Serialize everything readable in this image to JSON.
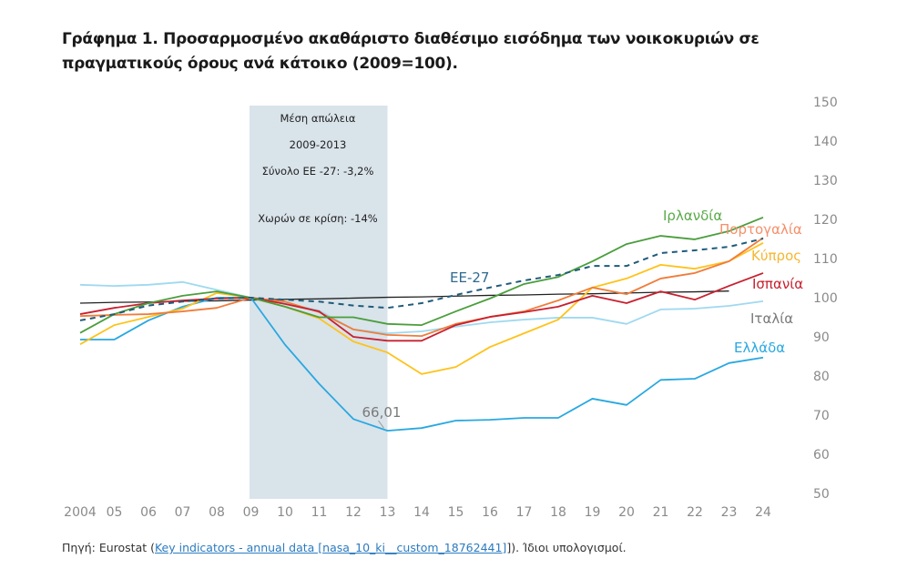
{
  "chart_data": {
    "type": "line",
    "title": "Γράφημα 1. Προσαρμοσμένο ακαθάριστο διαθέσιμο εισόδημα των νοικοκυριών σε πραγματικούς όρους ανά κάτοικο (2009=100).",
    "xlabel": "",
    "ylabel": "",
    "x": [
      "2004",
      "05",
      "06",
      "07",
      "08",
      "09",
      "10",
      "11",
      "12",
      "13",
      "14",
      "15",
      "16",
      "17",
      "18",
      "19",
      "20",
      "21",
      "22",
      "23",
      "24"
    ],
    "yticks": [
      50,
      60,
      70,
      80,
      90,
      100,
      110,
      120,
      130,
      140,
      150
    ],
    "ylim": [
      50,
      150
    ],
    "grid": false,
    "legend": "inline labels at line ends",
    "shaded_period": {
      "from": "09",
      "to": "13",
      "color": "#d9e3ea",
      "lines": [
        "Μέση απώλεια",
        "2009-2013",
        "Σύνολο ΕΕ -27:  -3,2%",
        "Χωρών σε κρίση: -14%"
      ]
    },
    "annotation": {
      "text": "66,01",
      "x": "13",
      "y": 66.01
    },
    "series": [
      {
        "name": "Ιρλανδία",
        "color": "#4a9e3c",
        "label_color": "#5aaa4a",
        "dashed": false,
        "values": [
          91,
          95.8,
          98.6,
          100.5,
          101.6,
          100,
          97.7,
          95,
          95,
          93.3,
          93,
          96.5,
          99.8,
          103.5,
          105.3,
          109.3,
          113.7,
          115.8,
          114.9,
          117,
          120.5
        ]
      },
      {
        "name": "ΕΕ-27",
        "color": "#1f5b7a",
        "label_color": "#2f6a8f",
        "dashed": true,
        "values": [
          94.2,
          95.8,
          98,
          99,
          99.8,
          100,
          99.5,
          99,
          98,
          97.4,
          98.6,
          100.7,
          102.6,
          104.4,
          105.8,
          108.1,
          108.1,
          111.4,
          112.1,
          113,
          115.1
        ]
      },
      {
        "name": "Πορτογαλία",
        "color": "#f07c3a",
        "label_color": "#f4906a",
        "dashed": false,
        "values": [
          95.3,
          95.6,
          95.8,
          96.5,
          97.4,
          100,
          99,
          96.3,
          91.9,
          90.5,
          90.2,
          93.3,
          95.1,
          96.5,
          99.3,
          102.6,
          100.9,
          104.9,
          106.3,
          109.3,
          115.3
        ]
      },
      {
        "name": "Κύπρος",
        "color": "#ffc21a",
        "label_color": "#f5b731",
        "dashed": false,
        "values": [
          88.1,
          93,
          95.1,
          97.2,
          101.2,
          100,
          97.7,
          94.7,
          88.8,
          86,
          80.5,
          82.3,
          87.4,
          90.9,
          94.4,
          102.6,
          104.9,
          108.4,
          107.4,
          109.3,
          114
        ]
      },
      {
        "name": "Ισπανία",
        "color": "#c8202f",
        "label_color": "#c8202f",
        "dashed": false,
        "values": [
          95.8,
          97.4,
          98.6,
          99.3,
          99.8,
          100,
          98.4,
          96.5,
          90,
          89,
          89,
          93,
          95.1,
          96.3,
          97.7,
          100.5,
          98.6,
          101.6,
          99.5,
          103,
          106.3
        ]
      },
      {
        "name": "Ιταλία",
        "color": "#9fd9f0",
        "label_color": "#7a7a7a",
        "dashed": false,
        "values": [
          103.3,
          103,
          103.3,
          104,
          102,
          100,
          98.6,
          96.7,
          91.9,
          90.9,
          91.4,
          92.6,
          93.7,
          94.4,
          94.9,
          94.9,
          93.3,
          97,
          97.2,
          97.9,
          99.1
        ]
      },
      {
        "name": "Ελλάδα",
        "color": "#29a8e0",
        "label_color": "#29a8e0",
        "dashed": false,
        "values": [
          89.3,
          89.3,
          94.2,
          97.7,
          100,
          100,
          88,
          78,
          69,
          66.01,
          66.7,
          68.6,
          68.8,
          69.3,
          69.3,
          74.2,
          72.6,
          79,
          79.3,
          83.3,
          84.7
        ]
      },
      {
        "color": "#222222",
        "dashed": false,
        "trend": true,
        "values": [
          98.6,
          98.8,
          98.9,
          99.1,
          99.2,
          99.4,
          99.6,
          99.7,
          99.9,
          100.1,
          100.2,
          100.4,
          100.6,
          100.7,
          100.9,
          101.0,
          101.2,
          101.4,
          101.5,
          101.7,
          null
        ]
      }
    ]
  },
  "source": {
    "prefix": "Πηγή: Eurostat (",
    "link": "Key indicators - annual data [nasa_10_ki__custom_18762441]",
    "suffix": "]). Ίδιοι υπολογισμοί."
  }
}
